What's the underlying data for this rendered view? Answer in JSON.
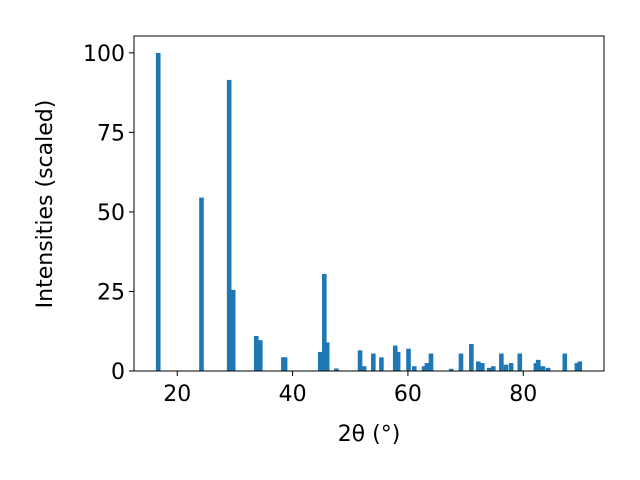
{
  "chart_data": {
    "type": "bar",
    "xlabel": "2θ (°)",
    "ylabel": "Intensities (scaled)",
    "x": [
      16.7,
      24.2,
      29.0,
      29.7,
      33.7,
      34.4,
      38.4,
      38.7,
      44.8,
      45.5,
      46.0,
      47.6,
      51.7,
      52.4,
      54.0,
      55.4,
      57.8,
      58.3,
      60.1,
      61.1,
      62.8,
      63.3,
      64.0,
      67.5,
      69.2,
      71.0,
      72.2,
      72.9,
      74.1,
      74.8,
      76.2,
      77.0,
      77.9,
      79.4,
      82.2,
      82.6,
      83.4,
      84.3,
      87.2,
      89.3,
      89.8
    ],
    "values": [
      100,
      54.5,
      91.5,
      25.5,
      11,
      9.7,
      4.3,
      4.3,
      6,
      30.5,
      9,
      0.8,
      6.5,
      1.5,
      5.5,
      4.3,
      8,
      6,
      7,
      1.5,
      1.5,
      2.5,
      5.5,
      0.7,
      5.5,
      8.5,
      3,
      2.5,
      1,
      1.5,
      5.5,
      2,
      2.5,
      5.5,
      2.5,
      3.5,
      1.5,
      1,
      5.5,
      2.5,
      3
    ],
    "color": "#1f77b4",
    "xlim": [
      12.5,
      94
    ],
    "xticks": [
      20,
      40,
      60,
      80
    ],
    "ylim": [
      0,
      105.3
    ],
    "yticks": [
      0,
      25,
      50,
      75,
      100
    ]
  }
}
